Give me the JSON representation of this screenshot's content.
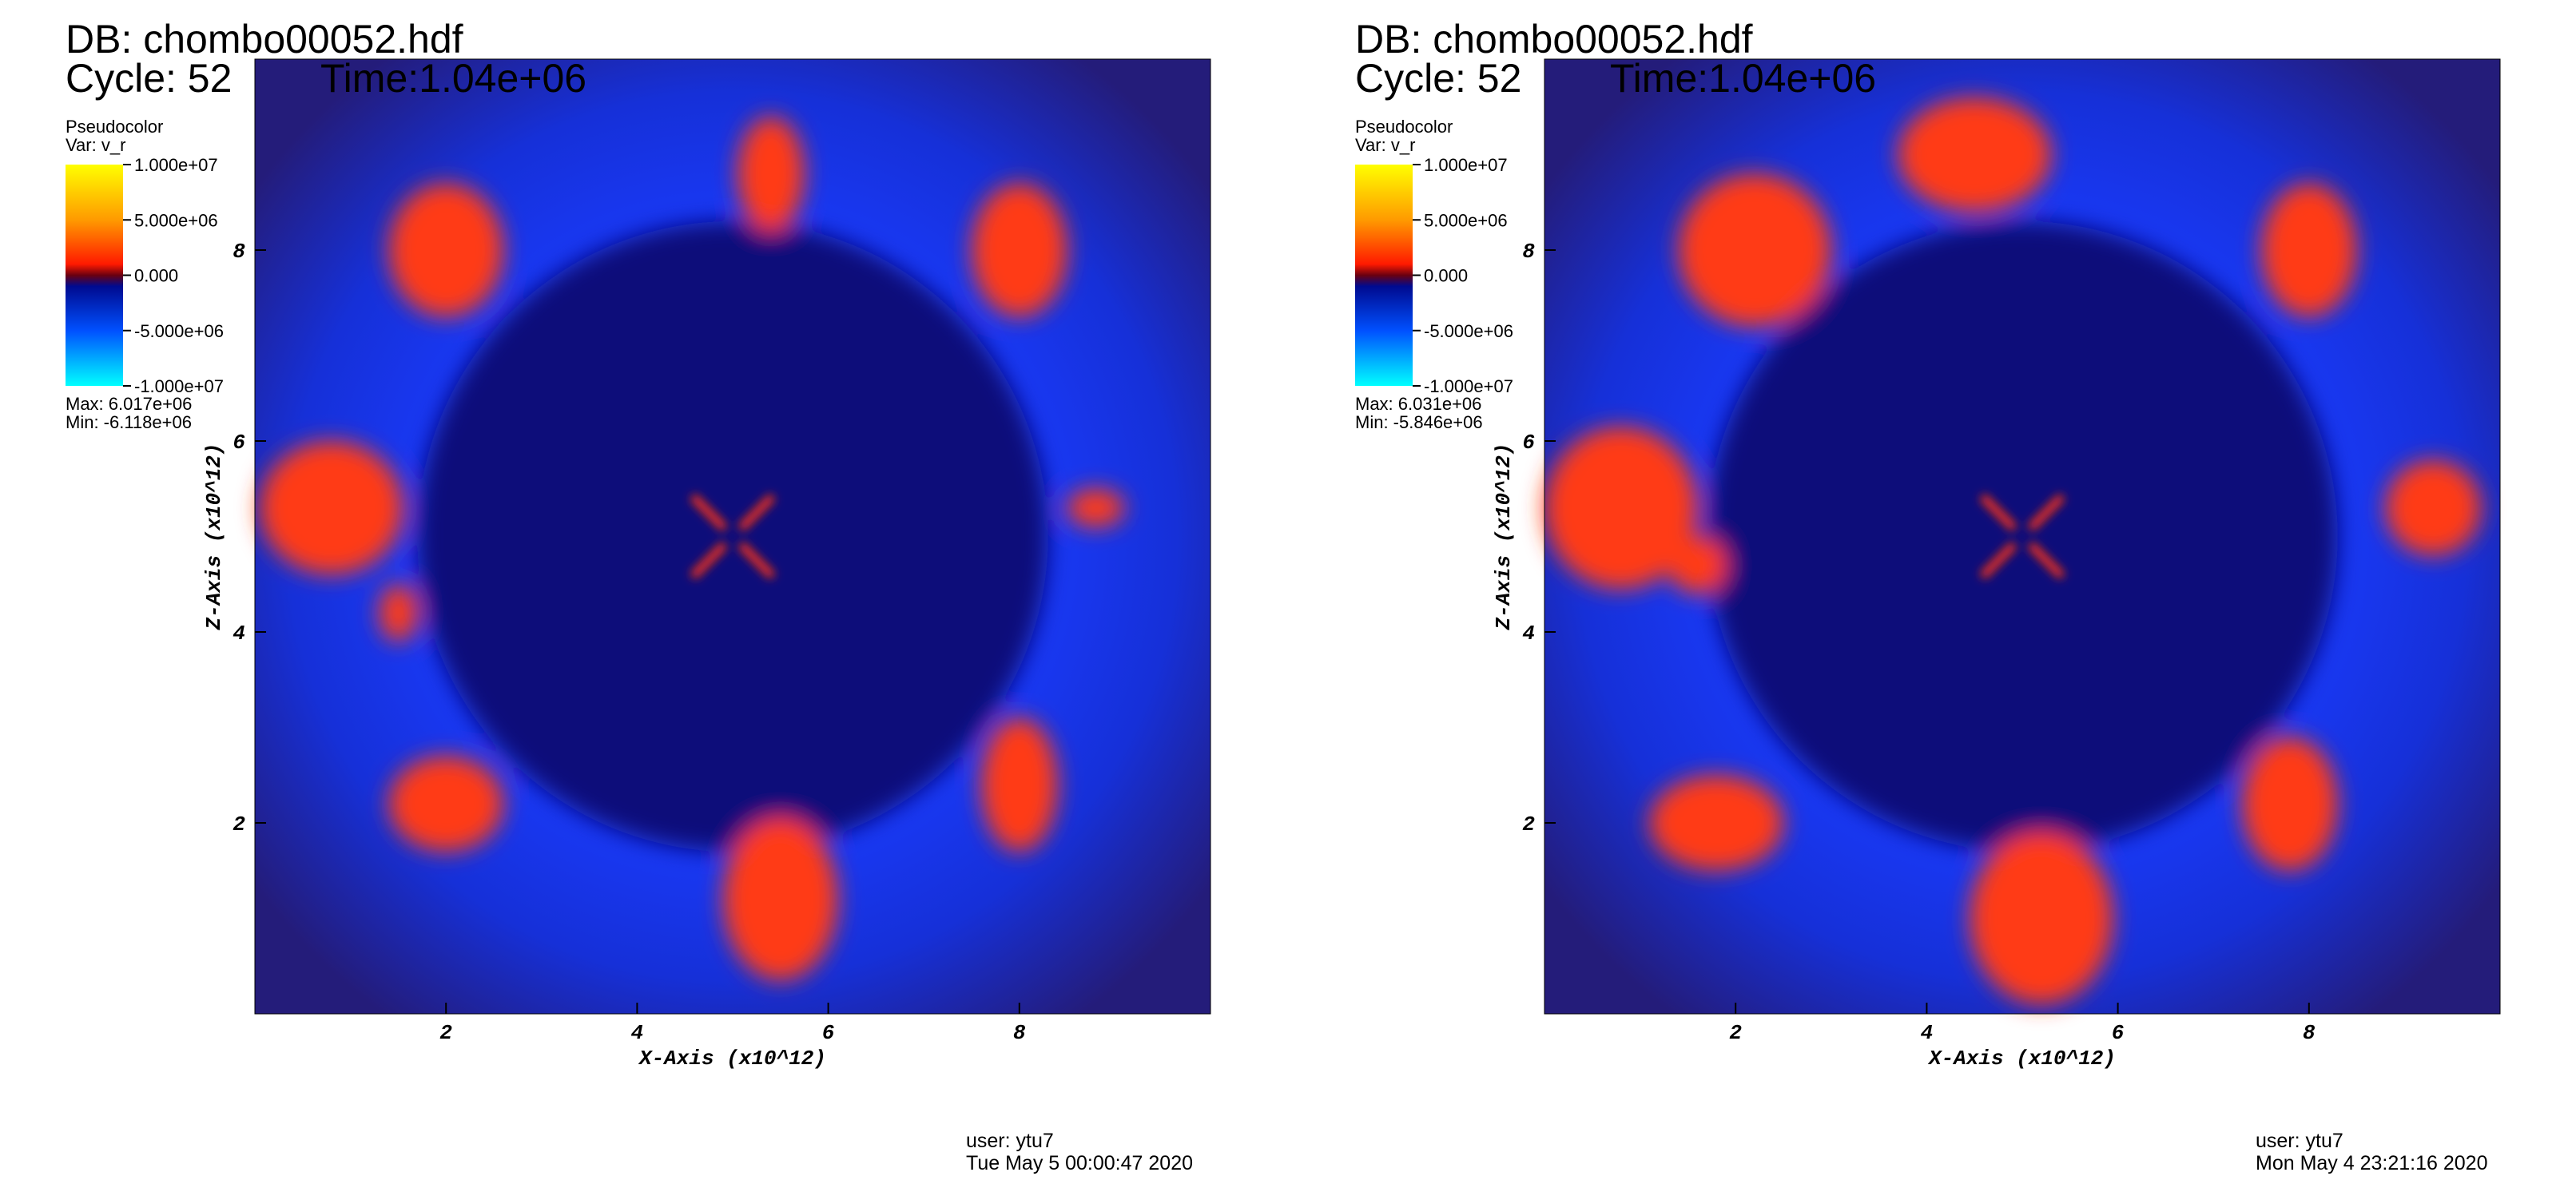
{
  "panels": [
    {
      "db": "DB: chombo00052.hdf",
      "cycle": "Cycle: 52",
      "time": "Time:1.04e+06",
      "legend": {
        "title": "Pseudocolor",
        "var": "Var: v_r",
        "range": [
          -10000000,
          10000000
        ],
        "ticks": [
          {
            "value": 10000000,
            "label": "1.000e+07"
          },
          {
            "value": 5000000,
            "label": "5.000e+06"
          },
          {
            "value": 0,
            "label": "0.000"
          },
          {
            "value": -5000000,
            "label": "-5.000e+06"
          },
          {
            "value": -10000000,
            "label": "-1.000e+07"
          }
        ],
        "max": "Max:  6.017e+06",
        "min": "Min: -6.118e+06"
      },
      "xlabel": "X-Axis (x10^12)",
      "ylabel": "Z-Axis (x10^12)",
      "xlim": [
        0,
        10
      ],
      "ylim": [
        0,
        10
      ],
      "xticks": [
        2,
        4,
        6,
        8
      ],
      "yticks": [
        2,
        4,
        6,
        8
      ],
      "user": "user: ytu7",
      "date": "Tue May  5 00:00:47 2020"
    },
    {
      "db": "DB: chombo00052.hdf",
      "cycle": "Cycle: 52",
      "time": "Time:1.04e+06",
      "legend": {
        "title": "Pseudocolor",
        "var": "Var: v_r",
        "range": [
          -10000000,
          10000000
        ],
        "ticks": [
          {
            "value": 10000000,
            "label": "1.000e+07"
          },
          {
            "value": 5000000,
            "label": "5.000e+06"
          },
          {
            "value": 0,
            "label": "0.000"
          },
          {
            "value": -5000000,
            "label": "-5.000e+06"
          },
          {
            "value": -10000000,
            "label": "-1.000e+07"
          }
        ],
        "max": "Max:  6.031e+06",
        "min": "Min: -5.846e+06"
      },
      "xlabel": "X-Axis (x10^12)",
      "ylabel": "Z-Axis (x10^12)",
      "xlim": [
        0,
        10
      ],
      "ylim": [
        0,
        10
      ],
      "xticks": [
        2,
        4,
        6,
        8
      ],
      "yticks": [
        2,
        4,
        6,
        8
      ],
      "user": "user: ytu7",
      "date": "Mon May  4 23:21:16 2020"
    }
  ]
}
